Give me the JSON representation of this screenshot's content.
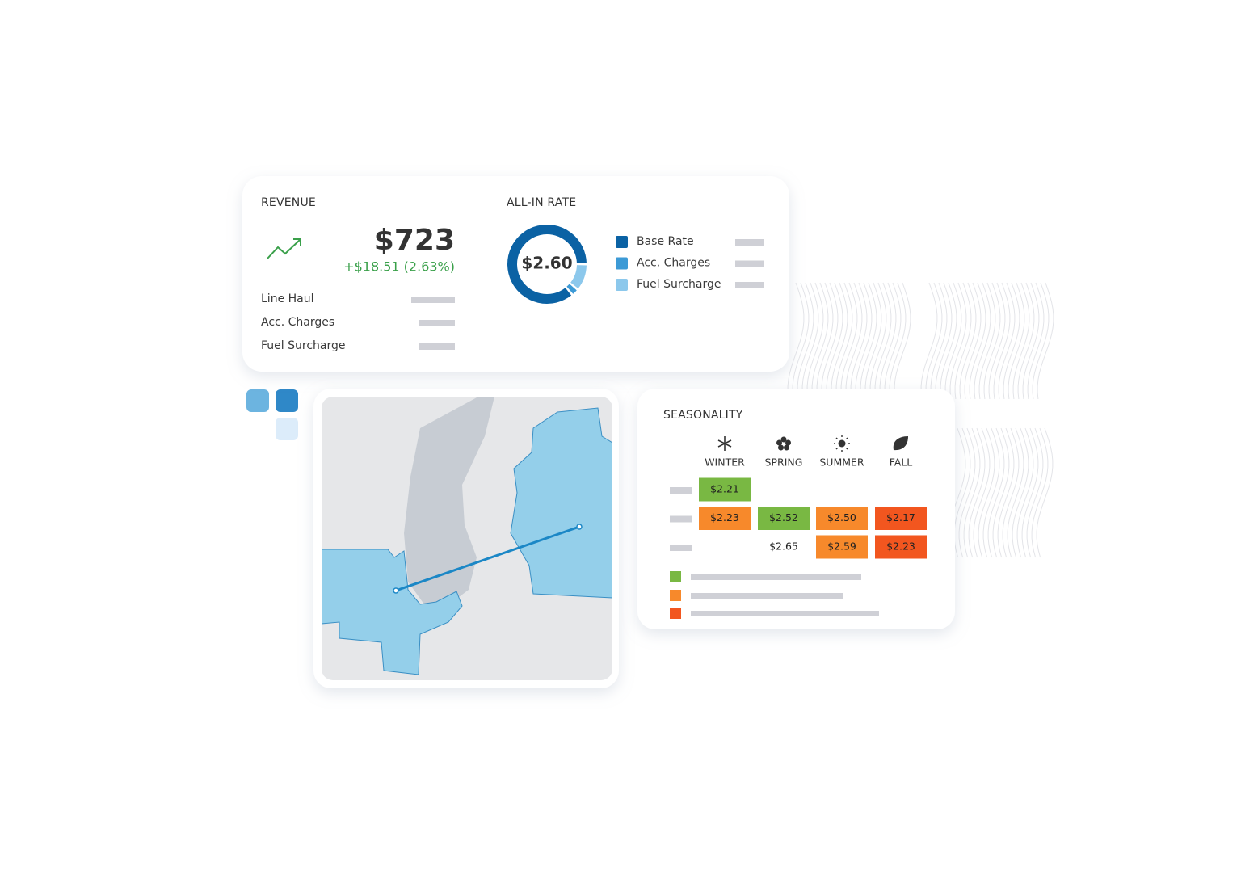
{
  "revenue": {
    "title": "REVENUE",
    "amount": "$723",
    "change": "+$18.51 (2.63%)",
    "rows": [
      "Line Haul",
      "Acc. Charges",
      "Fuel Surcharge"
    ]
  },
  "all_in_rate": {
    "title": "ALL-IN RATE",
    "center": "$2.60",
    "segments": [
      {
        "name": "Fuel Surcharge",
        "color": "#8cc8ec",
        "share": 11
      },
      {
        "name": "Acc. Charges",
        "color": "#3c9ad6",
        "share": 3
      },
      {
        "name": "Base Rate",
        "color": "#0b62a4",
        "share": 86
      }
    ],
    "legend_order": [
      2,
      1,
      0
    ]
  },
  "seasonality": {
    "title": "SEASONALITY",
    "columns": [
      "WINTER",
      "SPRING",
      "SUMMER",
      "FALL"
    ],
    "rows": [
      [
        {
          "text": "$2.21",
          "color": "#79b843"
        },
        null,
        null,
        null
      ],
      [
        {
          "text": "$2.23",
          "color": "#f7892b"
        },
        {
          "text": "$2.52",
          "color": "#79b843"
        },
        {
          "text": "$2.50",
          "color": "#f7892b"
        },
        {
          "text": "$2.17",
          "color": "#f2561f"
        }
      ],
      [
        null,
        {
          "text": "$2.65"
        },
        {
          "text": "$2.59",
          "color": "#f7892b"
        },
        {
          "text": "$2.23",
          "color": "#f2561f"
        }
      ]
    ]
  }
}
